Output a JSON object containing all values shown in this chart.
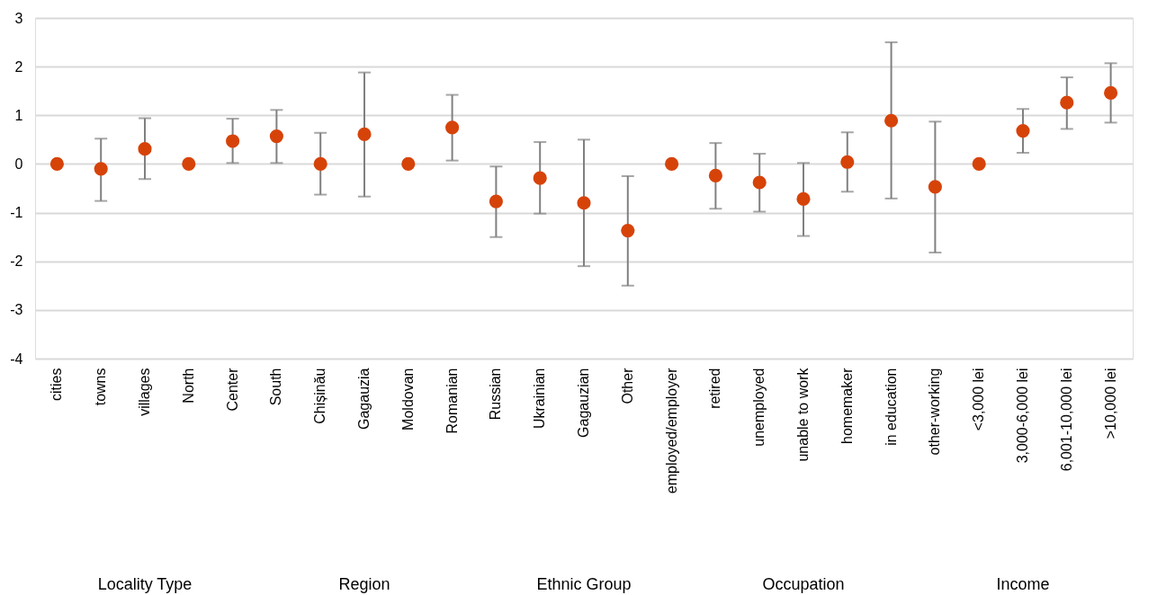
{
  "chart_data": {
    "type": "scatter",
    "categories": [
      "cities",
      "towns",
      "villages",
      "North",
      "Center",
      "South",
      "Chișinău",
      "Gagauzia",
      "Moldovan",
      "Romanian",
      "Russian",
      "Ukrainian",
      "Gagauzian",
      "Other",
      "employed/employer",
      "retired",
      "unemployed",
      "unable to work",
      "homemaker",
      "in education",
      "other-working",
      "<3,000 lei",
      "3,000-6,000 lei",
      "6,001-10,000 lei",
      ">10,000 lei"
    ],
    "values": [
      0,
      -0.1,
      0.31,
      0,
      0.47,
      0.57,
      0,
      0.61,
      0,
      0.75,
      -0.77,
      -0.29,
      -0.8,
      -1.37,
      0,
      -0.24,
      -0.38,
      -0.72,
      0.04,
      0.89,
      -0.47,
      0,
      0.68,
      1.26,
      1.46
    ],
    "errors": [
      null,
      [
        -0.76,
        0.52
      ],
      [
        -0.31,
        0.94
      ],
      null,
      [
        0.02,
        0.93
      ],
      [
        0.02,
        1.11
      ],
      [
        -0.63,
        0.64
      ],
      [
        -0.67,
        1.88
      ],
      null,
      [
        0.07,
        1.42
      ],
      [
        -1.5,
        -0.05
      ],
      [
        -1.02,
        0.45
      ],
      [
        -2.1,
        0.5
      ],
      [
        -2.5,
        -0.25
      ],
      null,
      [
        -0.92,
        0.43
      ],
      [
        -0.98,
        0.21
      ],
      [
        -1.48,
        0.02
      ],
      [
        -0.57,
        0.65
      ],
      [
        -0.71,
        2.5
      ],
      [
        -1.82,
        0.87
      ],
      null,
      [
        0.23,
        1.13
      ],
      [
        0.72,
        1.78
      ],
      [
        0.85,
        2.07
      ]
    ],
    "color": "#d64309",
    "marker": "circle",
    "ylim": [
      -4,
      3
    ],
    "yticks": [
      -4,
      -3,
      -2,
      -1,
      0,
      1,
      2,
      3
    ],
    "grid": "y",
    "annotations": [
      "Locality Type",
      "Region",
      "Ethnic Group",
      "Occupation",
      "Income"
    ]
  }
}
